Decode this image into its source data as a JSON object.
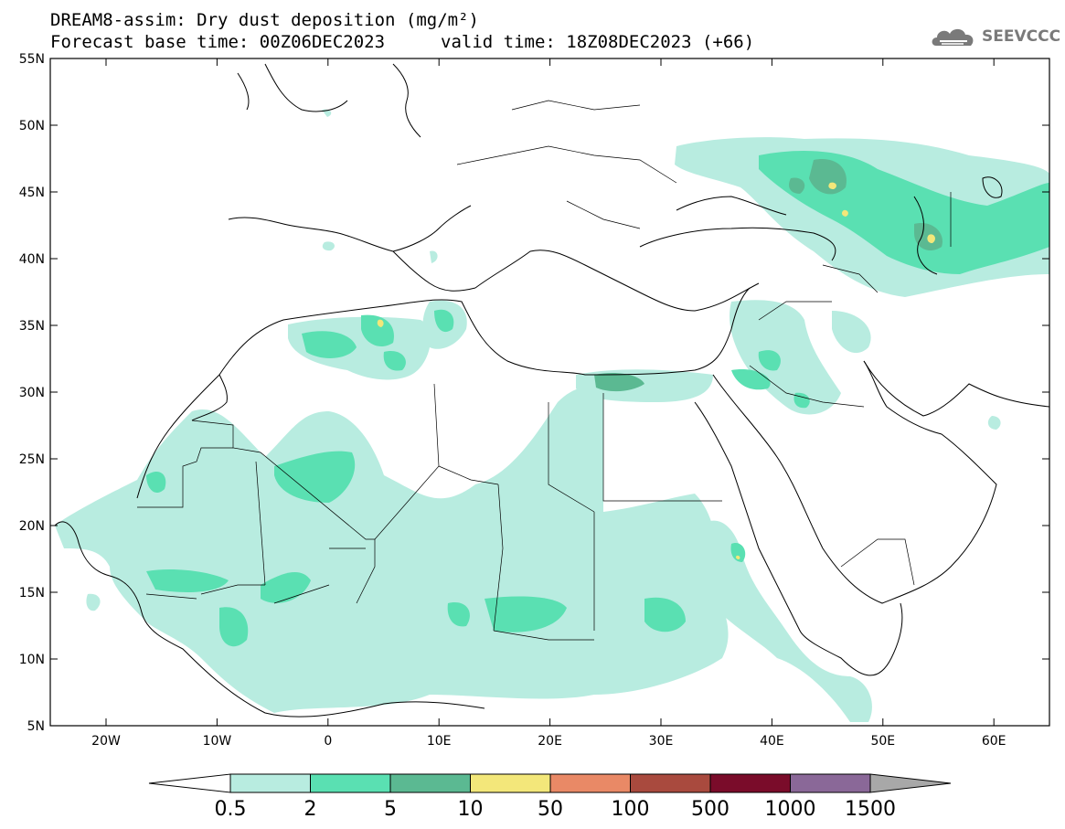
{
  "header": {
    "title_line1": "DREAM8-assim: Dry dust deposition (mg/m²)",
    "title_line2a": "Forecast base time: 00Z06DEC2023",
    "title_line2b": "valid time: 18Z08DEC2023 (+66)",
    "logo_text": "SEEVCCC",
    "logo_icon": "cloud-icon"
  },
  "map": {
    "lat_labels": [
      "55N",
      "50N",
      "45N",
      "40N",
      "35N",
      "30N",
      "25N",
      "20N",
      "15N",
      "10N",
      "5N"
    ],
    "lon_labels": [
      "20W",
      "10W",
      "0",
      "10E",
      "20E",
      "30E",
      "40E",
      "50E",
      "60E"
    ]
  },
  "legend": {
    "labels": [
      "0.5",
      "2",
      "5",
      "10",
      "50",
      "100",
      "500",
      "1000",
      "1500"
    ],
    "colors": [
      "#b8ece0",
      "#5ae0b2",
      "#5bb992",
      "#f3e77a",
      "#e98966",
      "#a94a3e",
      "#7a0c2a",
      "#8a6898",
      "#a8a8a8"
    ]
  }
}
